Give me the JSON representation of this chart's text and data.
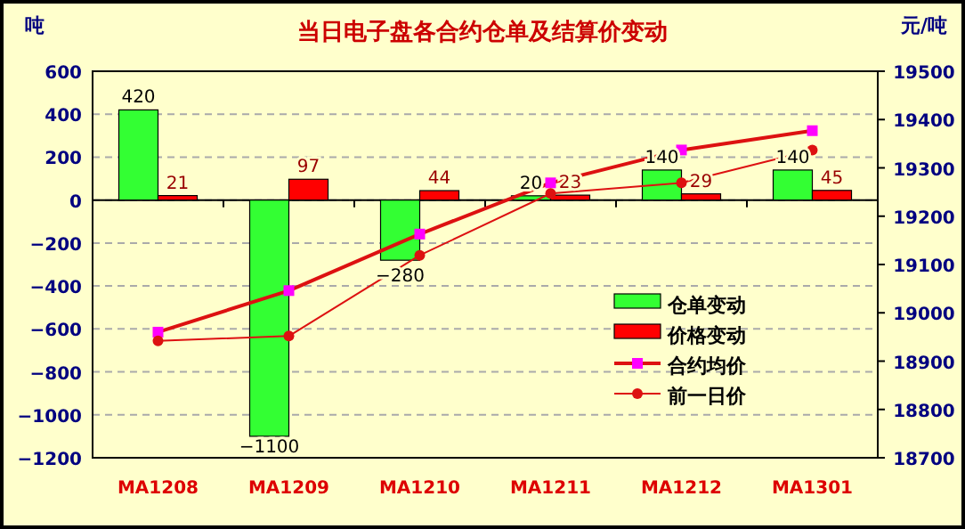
{
  "chart_data": {
    "type": "bar",
    "title": "当日电子盘各合约仓单及结算价变动",
    "ylabel": "吨",
    "y2label": "元/吨",
    "categories": [
      "MA1208",
      "MA1209",
      "MA1210",
      "MA1211",
      "MA1212",
      "MA1301"
    ],
    "series": [
      {
        "name": "仓单变动",
        "color": "#33ff33",
        "values": [
          420,
          -1100,
          -280,
          20,
          140,
          140
        ],
        "value_labels": [
          "420",
          "−1100",
          "−280",
          "20",
          "140",
          "140"
        ]
      },
      {
        "name": "价格变动",
        "color": "#ff0000",
        "values": [
          21,
          97,
          44,
          23,
          29,
          45
        ],
        "value_labels": [
          "21",
          "97",
          "44",
          "23",
          "29",
          "45"
        ]
      },
      {
        "name": "合约均价",
        "type": "line",
        "axis": "y2",
        "color": "#dd1111",
        "marker": "square",
        "values": [
          18960,
          19046,
          19163,
          19269,
          19337,
          19377
        ]
      },
      {
        "name": "前一日价",
        "type": "line",
        "axis": "y2",
        "color": "#dd1111",
        "marker": "circle",
        "values": [
          18942,
          18952,
          19119,
          19247,
          19269,
          19337
        ]
      }
    ],
    "ylim": [
      -1200,
      600
    ],
    "yticks": [
      -1200,
      -1000,
      -800,
      -600,
      -400,
      -200,
      0,
      200,
      400,
      600
    ],
    "y2lim": [
      18700,
      19500
    ],
    "y2ticks": [
      18700,
      18800,
      18900,
      19000,
      19100,
      19200,
      19300,
      19400,
      19500
    ],
    "grid": "y",
    "legend": "bottom right"
  }
}
